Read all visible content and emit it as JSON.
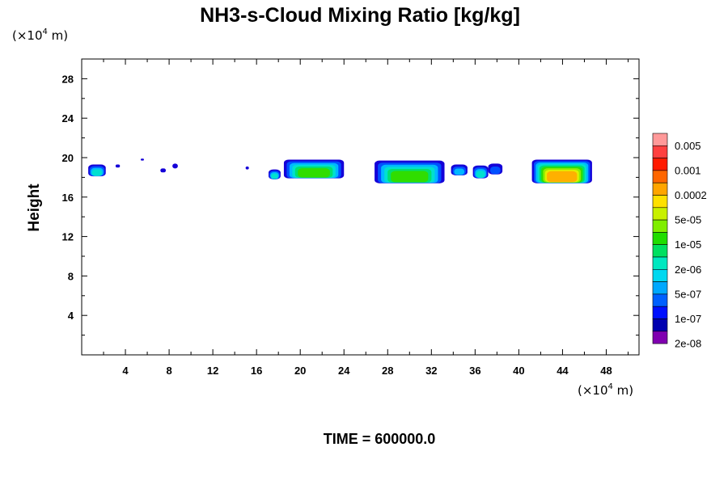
{
  "chart_data": {
    "type": "heatmap",
    "title": "NH3-s-Cloud Mixing Ratio [kg/kg]",
    "ylabel": "Height",
    "x_unit": "(×10",
    "x_unit_exp": "4",
    "x_unit_tail": " m)",
    "y_unit": "(×10",
    "y_unit_exp": "4",
    "y_unit_tail": " m)",
    "xlim": [
      0,
      51
    ],
    "ylim": [
      0,
      30
    ],
    "x_ticks": [
      "4",
      "8",
      "12",
      "16",
      "20",
      "24",
      "28",
      "32",
      "36",
      "40",
      "44",
      "48"
    ],
    "x_tick_values": [
      4,
      8,
      12,
      16,
      20,
      24,
      28,
      32,
      36,
      40,
      44,
      48
    ],
    "y_ticks": [
      "4",
      "8",
      "12",
      "16",
      "20",
      "24",
      "28"
    ],
    "y_tick_values": [
      4,
      8,
      12,
      16,
      20,
      24,
      28
    ],
    "footer": "TIME = 600000.0",
    "colorbar": {
      "labels": [
        "0.005",
        "0.001",
        "0.0002",
        "5e-05",
        "1e-05",
        "2e-06",
        "5e-07",
        "1e-07",
        "2e-08"
      ],
      "colors": [
        "#ff9999",
        "#ff4040",
        "#ff1a00",
        "#ff6600",
        "#ffa500",
        "#ffe000",
        "#c8f000",
        "#80ee00",
        "#20dd00",
        "#00e060",
        "#00e8c0",
        "#00d8f0",
        "#00a8ff",
        "#0060ff",
        "#0010ff",
        "#0000b0",
        "#8000b0"
      ]
    },
    "cloud_blobs": [
      {
        "x0": 0.6,
        "x1": 2.2,
        "y_top": 19.3,
        "y_bot": 18.1,
        "level": 4
      },
      {
        "x0": 3.1,
        "x1": 3.5,
        "y_top": 19.3,
        "y_bot": 19.0,
        "level": 1
      },
      {
        "x0": 5.4,
        "x1": 5.7,
        "y_top": 19.9,
        "y_bot": 19.7,
        "level": 0
      },
      {
        "x0": 7.2,
        "x1": 7.7,
        "y_top": 18.9,
        "y_bot": 18.5,
        "level": 1
      },
      {
        "x0": 8.3,
        "x1": 8.8,
        "y_top": 19.4,
        "y_bot": 18.9,
        "level": 1
      },
      {
        "x0": 15.0,
        "x1": 15.3,
        "y_top": 19.1,
        "y_bot": 18.8,
        "level": 1
      },
      {
        "x0": 17.1,
        "x1": 18.2,
        "y_top": 18.8,
        "y_bot": 17.8,
        "level": 4
      },
      {
        "x0": 18.5,
        "x1": 24.0,
        "y_top": 19.8,
        "y_bot": 17.9,
        "level": 6
      },
      {
        "x0": 26.8,
        "x1": 33.2,
        "y_top": 19.7,
        "y_bot": 17.4,
        "level": 6
      },
      {
        "x0": 33.8,
        "x1": 35.3,
        "y_top": 19.3,
        "y_bot": 18.2,
        "level": 3
      },
      {
        "x0": 35.8,
        "x1": 37.2,
        "y_top": 19.2,
        "y_bot": 17.9,
        "level": 4
      },
      {
        "x0": 37.2,
        "x1": 38.5,
        "y_top": 19.4,
        "y_bot": 18.3,
        "level": 2
      },
      {
        "x0": 41.2,
        "x1": 46.7,
        "y_top": 19.8,
        "y_bot": 17.4,
        "level": 9
      }
    ]
  }
}
